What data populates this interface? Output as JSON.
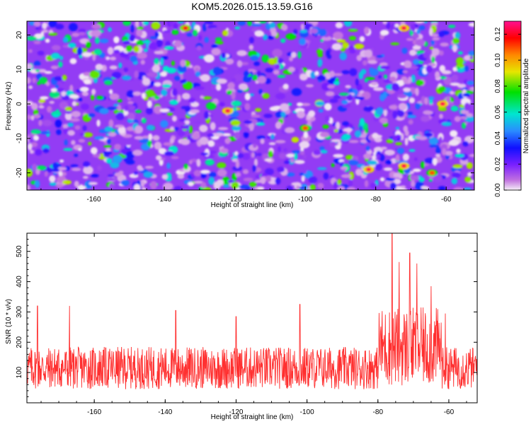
{
  "figure_title": "KOM5.2026.015.13.59.G16",
  "chart_data": [
    {
      "type": "heatmap",
      "title": "KOM5.2026.015.13.59.G16",
      "xlabel": "Height of straight line (km)",
      "ylabel": "Frequency (Hz)",
      "xlim": [
        -179,
        -52
      ],
      "ylim": [
        -25,
        24
      ],
      "xticks": [
        -160,
        -140,
        -120,
        -100,
        -80,
        -60
      ],
      "yticks": [
        -20,
        -10,
        0,
        10,
        20
      ],
      "colorbar": {
        "label": "Normalized spectral amplitude",
        "range": [
          0.0,
          0.13
        ],
        "ticks": [
          0.0,
          0.02,
          0.04,
          0.06,
          0.08,
          0.1,
          0.12
        ],
        "colormap": [
          "#f2e8f4",
          "#c070e0",
          "#7a20ff",
          "#1010ff",
          "#2a8cff",
          "#00e5d0",
          "#00e000",
          "#e6e600",
          "#ff8800",
          "#ff0000",
          "#ff0040",
          "#ff1090"
        ]
      },
      "description_values": {
        "background_level": 0.02,
        "hotspots": [
          {
            "x": -134,
            "y": 22,
            "value": 0.11
          },
          {
            "x": -122,
            "y": -2,
            "value": 0.12
          },
          {
            "x": -100,
            "y": -7,
            "value": 0.1
          },
          {
            "x": -82,
            "y": -19,
            "value": 0.12
          },
          {
            "x": -72,
            "y": 22,
            "value": 0.12
          },
          {
            "x": -72,
            "y": -18,
            "value": 0.12
          },
          {
            "x": -61,
            "y": 0,
            "value": 0.12
          },
          {
            "x": -64,
            "y": -20,
            "value": 0.1
          }
        ]
      }
    },
    {
      "type": "line",
      "xlabel": "Height of straight line (km)",
      "ylabel": "SNR (10 * v/v)",
      "xlim": [
        -179,
        -52
      ],
      "ylim": [
        0,
        560
      ],
      "xticks": [
        -160,
        -140,
        -120,
        -100,
        -80,
        -60
      ],
      "yticks": [
        100,
        200,
        300,
        400,
        500
      ],
      "color": "#ff3030",
      "series": [
        {
          "name": "SNR",
          "baseline_mean": 115,
          "baseline_spread": 70,
          "peaks": [
            {
              "x": -176,
              "value": 320
            },
            {
              "x": -167,
              "value": 320
            },
            {
              "x": -137,
              "value": 305
            },
            {
              "x": -120,
              "value": 285
            },
            {
              "x": -102,
              "value": 325
            },
            {
              "x": -76,
              "value": 560
            },
            {
              "x": -74,
              "value": 465
            },
            {
              "x": -71,
              "value": 495
            },
            {
              "x": -69,
              "value": 460
            },
            {
              "x": -65,
              "value": 385
            },
            {
              "x": -61,
              "value": 295
            }
          ],
          "elevated_region": [
            -80,
            -62
          ]
        }
      ]
    }
  ]
}
